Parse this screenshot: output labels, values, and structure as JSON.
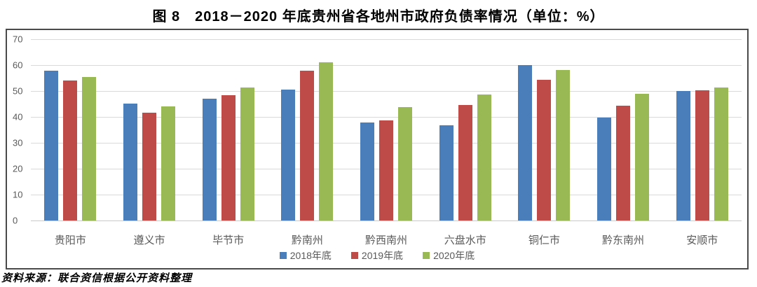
{
  "page": {
    "title": "图 8　2018－2020 年底贵州省各地州市政府负债率情况（单位：%）",
    "source_note": "资料来源：联合资信根据公开资料整理"
  },
  "chart_data": {
    "type": "bar",
    "title": "图 8　2018－2020 年底贵州省各地州市政府负债率情况（单位：%）",
    "unit": "%",
    "categories": [
      "贵阳市",
      "遵义市",
      "毕节市",
      "黔南州",
      "黔西南州",
      "六盘水市",
      "铜仁市",
      "黔东南州",
      "安顺市"
    ],
    "series": [
      {
        "name": "2018年底",
        "color": "#4A7EBB",
        "values": [
          57.8,
          45.2,
          47.0,
          50.5,
          37.8,
          36.8,
          60.1,
          39.8,
          49.9
        ]
      },
      {
        "name": "2019年底",
        "color": "#BE4B48",
        "values": [
          54.0,
          41.5,
          48.3,
          57.8,
          38.6,
          44.6,
          54.3,
          44.4,
          50.4
        ]
      },
      {
        "name": "2020年底",
        "color": "#98B954",
        "values": [
          55.4,
          44.1,
          51.3,
          61.1,
          43.8,
          48.7,
          58.0,
          48.8,
          51.3
        ]
      }
    ],
    "xlabel": "",
    "ylabel": "",
    "ylim": [
      0,
      70
    ],
    "yticks": [
      0,
      10,
      20,
      30,
      40,
      50,
      60,
      70
    ],
    "grid": true,
    "legend_position": "bottom-center",
    "styles": {
      "axis_label_color": "#595959",
      "gridline_color": "#d9d9d9",
      "frame_border_color": "#4a4a4a",
      "background": "#ffffff"
    }
  }
}
